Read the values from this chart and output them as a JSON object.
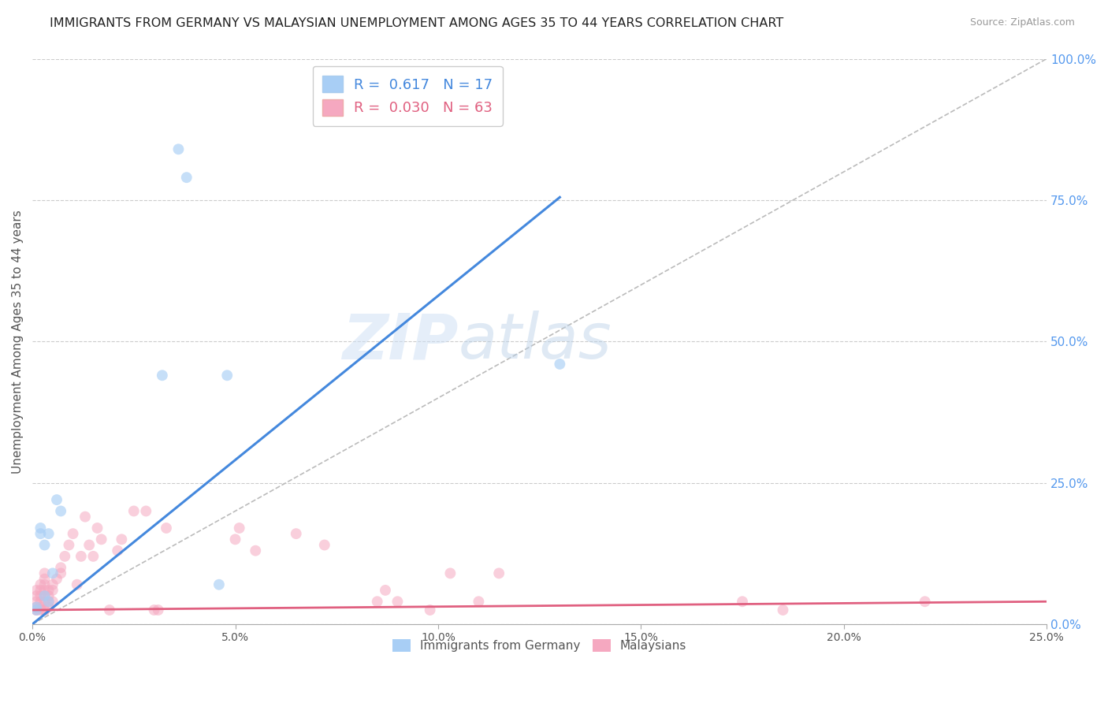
{
  "title": "IMMIGRANTS FROM GERMANY VS MALAYSIAN UNEMPLOYMENT AMONG AGES 35 TO 44 YEARS CORRELATION CHART",
  "source": "Source: ZipAtlas.com",
  "ylabel": "Unemployment Among Ages 35 to 44 years",
  "xlim": [
    0.0,
    0.25
  ],
  "ylim": [
    0.0,
    1.0
  ],
  "xticks": [
    0.0,
    0.05,
    0.1,
    0.15,
    0.2,
    0.25
  ],
  "xticklabels": [
    "0.0%",
    "5.0%",
    "10.0%",
    "15.0%",
    "20.0%",
    "25.0%"
  ],
  "yticks_right": [
    0.0,
    0.25,
    0.5,
    0.75,
    1.0
  ],
  "yticklabels_right": [
    "0.0%",
    "25.0%",
    "50.0%",
    "75.0%",
    "100.0%"
  ],
  "legend_R1": "0.617",
  "legend_N1": "17",
  "legend_R2": "0.030",
  "legend_N2": "63",
  "color_blue": "#a8cef5",
  "color_pink": "#f5a8c0",
  "color_line_blue": "#4488dd",
  "color_line_pink": "#e06080",
  "color_diag": "#bbbbbb",
  "color_grid": "#cccccc",
  "color_tick_right": "#5599ee",
  "watermark_color": "#cde0f5",
  "watermark": "ZIPatlas",
  "germany_x": [
    0.001,
    0.001,
    0.002,
    0.002,
    0.003,
    0.003,
    0.004,
    0.004,
    0.005,
    0.006,
    0.007,
    0.032,
    0.036,
    0.038,
    0.046,
    0.048,
    0.13
  ],
  "germany_y": [
    0.025,
    0.03,
    0.17,
    0.16,
    0.14,
    0.05,
    0.16,
    0.04,
    0.09,
    0.22,
    0.2,
    0.44,
    0.84,
    0.79,
    0.07,
    0.44,
    0.46
  ],
  "malaysia_x": [
    0.001,
    0.001,
    0.001,
    0.001,
    0.001,
    0.001,
    0.002,
    0.002,
    0.002,
    0.002,
    0.002,
    0.002,
    0.003,
    0.003,
    0.003,
    0.003,
    0.003,
    0.003,
    0.003,
    0.003,
    0.004,
    0.004,
    0.004,
    0.004,
    0.005,
    0.005,
    0.005,
    0.006,
    0.007,
    0.007,
    0.008,
    0.009,
    0.01,
    0.011,
    0.012,
    0.013,
    0.014,
    0.015,
    0.016,
    0.017,
    0.019,
    0.021,
    0.022,
    0.025,
    0.028,
    0.03,
    0.031,
    0.033,
    0.05,
    0.051,
    0.055,
    0.065,
    0.072,
    0.085,
    0.087,
    0.09,
    0.098,
    0.103,
    0.11,
    0.115,
    0.175,
    0.185,
    0.22
  ],
  "malaysia_y": [
    0.025,
    0.025,
    0.03,
    0.04,
    0.05,
    0.06,
    0.025,
    0.03,
    0.04,
    0.05,
    0.06,
    0.07,
    0.025,
    0.025,
    0.04,
    0.05,
    0.06,
    0.07,
    0.08,
    0.09,
    0.03,
    0.04,
    0.05,
    0.06,
    0.04,
    0.06,
    0.07,
    0.08,
    0.09,
    0.1,
    0.12,
    0.14,
    0.16,
    0.07,
    0.12,
    0.19,
    0.14,
    0.12,
    0.17,
    0.15,
    0.025,
    0.13,
    0.15,
    0.2,
    0.2,
    0.025,
    0.025,
    0.17,
    0.15,
    0.17,
    0.13,
    0.16,
    0.14,
    0.04,
    0.06,
    0.04,
    0.025,
    0.09,
    0.04,
    0.09,
    0.04,
    0.025,
    0.04
  ],
  "blue_line_x": [
    0.0,
    0.13
  ],
  "blue_line_y": [
    0.0,
    0.755
  ],
  "pink_line_x": [
    0.0,
    0.25
  ],
  "pink_line_y": [
    0.025,
    0.04
  ]
}
